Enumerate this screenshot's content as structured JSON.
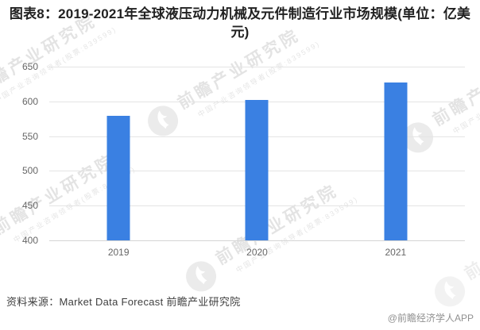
{
  "page": {
    "title": "图表8：2019-2021年全球液压动力机械及元件制造行业市场规模(单位：亿美元)",
    "source": "资料来源：Market Data Forecast 前瞻产业研究院",
    "credit": "@前瞻经济学人APP"
  },
  "watermark": {
    "brand": "前瞻产业研究院",
    "tagline": "中国产业咨询领导者(股票:839599)"
  },
  "chart_data": {
    "type": "bar",
    "categories": [
      "2019",
      "2020",
      "2021"
    ],
    "values": [
      579,
      602,
      627
    ],
    "title": "图表8：2019-2021年全球液压动力机械及元件制造行业市场规模(单位：亿美元)",
    "xlabel": "",
    "ylabel": "单位：亿美元",
    "ylim": [
      400,
      650
    ],
    "yticks": [
      650,
      600,
      550,
      500,
      450,
      400
    ],
    "grid": true,
    "legend": false,
    "bar_color": "#3A80E2",
    "gridline_color": "#e4e4e4",
    "baseline_color": "#d5d5d5"
  }
}
